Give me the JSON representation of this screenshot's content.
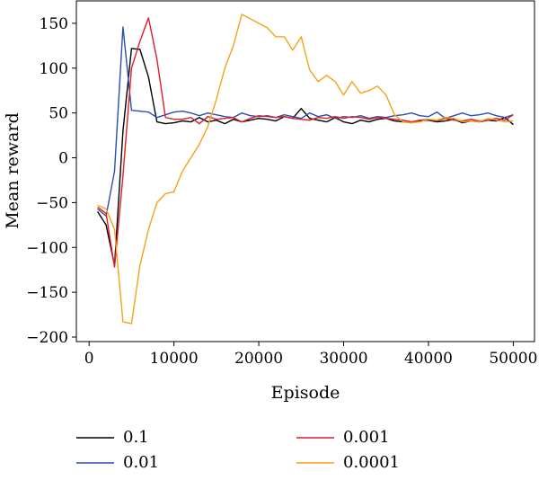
{
  "chart_data": {
    "type": "line",
    "title": "",
    "xlabel": "Episode",
    "ylabel": "Mean reward",
    "xlim": [
      -1500,
      52500
    ],
    "ylim": [
      -205,
      175
    ],
    "xticks": [
      0,
      10000,
      20000,
      30000,
      40000,
      50000
    ],
    "xtick_labels": [
      "0",
      "10000",
      "20000",
      "30000",
      "40000",
      "50000"
    ],
    "yticks": [
      150,
      100,
      50,
      0,
      -50,
      -100,
      -150,
      -200
    ],
    "ytick_labels": [
      "150",
      "100",
      "50",
      "0",
      "−50",
      "−100",
      "−150",
      "−200"
    ],
    "grid": false,
    "legend_position": "bottom",
    "x": [
      1000,
      2000,
      3000,
      4000,
      5000,
      6000,
      7000,
      8000,
      9000,
      10000,
      11000,
      12000,
      13000,
      14000,
      15000,
      16000,
      17000,
      18000,
      19000,
      20000,
      21000,
      22000,
      23000,
      24000,
      25000,
      26000,
      27000,
      28000,
      29000,
      30000,
      31000,
      32000,
      33000,
      34000,
      35000,
      36000,
      37000,
      38000,
      39000,
      40000,
      41000,
      42000,
      43000,
      44000,
      45000,
      46000,
      47000,
      48000,
      49000,
      50000
    ],
    "series": [
      {
        "name": "0.1",
        "color": "#000000",
        "values": [
          -60,
          -75,
          -120,
          30,
          122,
          121,
          90,
          40,
          38,
          39,
          41,
          40,
          45,
          40,
          42,
          38,
          43,
          40,
          42,
          44,
          43,
          41,
          46,
          44,
          55,
          44,
          42,
          40,
          45,
          40,
          38,
          42,
          40,
          43,
          44,
          41,
          40,
          39,
          41,
          42,
          40,
          41,
          43,
          39,
          41,
          40,
          42,
          41,
          45,
          37
        ]
      },
      {
        "name": "0.01",
        "color": "#2b4fae",
        "values": [
          -57,
          -65,
          -15,
          146,
          53,
          52,
          51,
          45,
          48,
          51,
          52,
          50,
          47,
          50,
          48,
          46,
          45,
          50,
          47,
          46,
          47,
          45,
          48,
          46,
          44,
          50,
          46,
          48,
          44,
          46,
          45,
          47,
          44,
          46,
          45,
          47,
          48,
          50,
          47,
          46,
          51,
          44,
          47,
          50,
          47,
          48,
          50,
          47,
          45,
          48
        ]
      },
      {
        "name": "0.001",
        "color": "#e01e26",
        "values": [
          -55,
          -62,
          -122,
          -20,
          100,
          130,
          156,
          110,
          45,
          43,
          43,
          45,
          38,
          46,
          43,
          44,
          45,
          40,
          44,
          47,
          46,
          45,
          46,
          44,
          43,
          42,
          45,
          44,
          46,
          44,
          46,
          45,
          43,
          45,
          44,
          43,
          42,
          40,
          42,
          43,
          41,
          44,
          42,
          41,
          43,
          41,
          42,
          44,
          42,
          48
        ]
      },
      {
        "name": "0.0001",
        "color": "#f5a21b",
        "values": [
          -53,
          -57,
          -80,
          -183,
          -185,
          -120,
          -80,
          -50,
          -40,
          -38,
          -15,
          0,
          15,
          35,
          65,
          100,
          125,
          160,
          155,
          150,
          145,
          135,
          135,
          120,
          135,
          98,
          85,
          92,
          85,
          70,
          85,
          72,
          75,
          80,
          70,
          48,
          40,
          39,
          40,
          43,
          42,
          45,
          44,
          40,
          41,
          40,
          44,
          42,
          40,
          41
        ]
      }
    ]
  }
}
